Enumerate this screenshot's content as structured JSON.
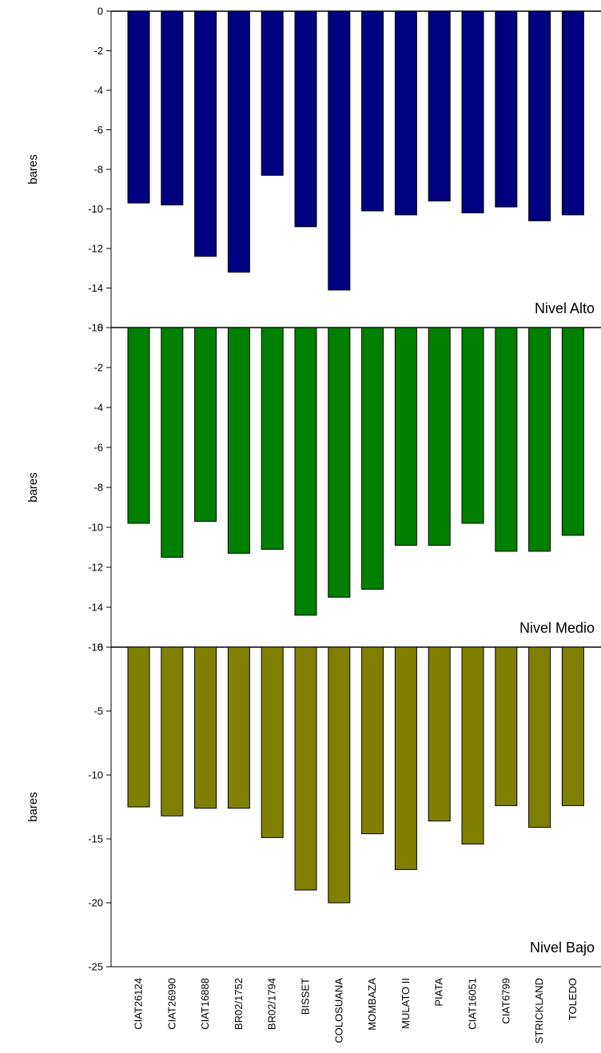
{
  "chart_data": [
    {
      "type": "bar",
      "panel_label": "Nivel Alto",
      "ylabel": "bares",
      "ylim": [
        -16,
        0
      ],
      "yticks": [
        0,
        -2,
        -4,
        -6,
        -8,
        -10,
        -12,
        -14,
        -16
      ],
      "bar_color": "#000080",
      "categories": [
        "CIAT26124",
        "CIAT26990",
        "CIAT16888",
        "BR02/1752",
        "BR02/1794",
        "BISSET",
        "COLOSUANA",
        "MOMBAZA",
        "MULATO II",
        "PIATA",
        "CIAT16051",
        "CIAT6799",
        "STRICKLAND",
        "TOLEDO"
      ],
      "values": [
        -9.7,
        -9.8,
        -12.4,
        -13.2,
        -8.3,
        -10.9,
        -14.1,
        -10.1,
        -10.3,
        -9.6,
        -10.2,
        -9.9,
        -10.6,
        -10.3
      ]
    },
    {
      "type": "bar",
      "panel_label": "Nivel Medio",
      "ylabel": "bares",
      "ylim": [
        -16,
        0
      ],
      "yticks": [
        0,
        -2,
        -4,
        -6,
        -8,
        -10,
        -12,
        -14,
        -16
      ],
      "bar_color": "#008000",
      "categories": [
        "CIAT26124",
        "CIAT26990",
        "CIAT16888",
        "BR02/1752",
        "BR02/1794",
        "BISSET",
        "COLOSUANA",
        "MOMBAZA",
        "MULATO II",
        "PIATA",
        "CIAT16051",
        "CIAT6799",
        "STRICKLAND",
        "TOLEDO"
      ],
      "values": [
        -9.8,
        -11.5,
        -9.7,
        -11.3,
        -11.1,
        -14.4,
        -13.5,
        -13.1,
        -10.9,
        -10.9,
        -9.8,
        -11.2,
        -11.2,
        -10.4
      ]
    },
    {
      "type": "bar",
      "panel_label": "Nivel Bajo",
      "ylabel": "bares",
      "ylim": [
        -25,
        0
      ],
      "yticks": [
        0,
        -5,
        -10,
        -15,
        -20,
        -25
      ],
      "bar_color": "#808000",
      "categories": [
        "CIAT26124",
        "CIAT26990",
        "CIAT16888",
        "BR02/1752",
        "BR02/1794",
        "BISSET",
        "COLOSUANA",
        "MOMBAZA",
        "MULATO II",
        "PIATA",
        "CIAT16051",
        "CIAT6799",
        "STRICKLAND",
        "TOLEDO"
      ],
      "values": [
        -12.5,
        -13.2,
        -12.6,
        -12.6,
        -14.9,
        -19.0,
        -20.0,
        -14.6,
        -17.4,
        -13.6,
        -15.4,
        -12.4,
        -14.1,
        -12.4
      ]
    }
  ]
}
